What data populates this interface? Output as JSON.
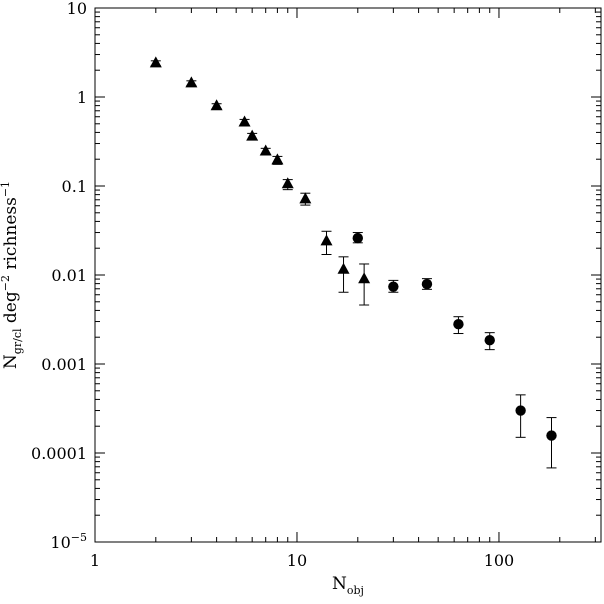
{
  "chart_data": {
    "type": "scatter",
    "xscale": "log",
    "yscale": "log",
    "xlim": [
      1,
      320
    ],
    "ylim": [
      1e-05,
      10
    ],
    "grid": false,
    "legend": "none",
    "xlabel": {
      "main": "N",
      "sub": "obj"
    },
    "ylabel": {
      "n": "N",
      "n_sub": "gr/cl",
      "deg": " deg",
      "deg_exp": "−2",
      "richness": " richness",
      "richness_exp": "−1"
    },
    "x_tick_labels": [
      {
        "value": 1,
        "label": "1"
      },
      {
        "value": 10,
        "label": "10"
      },
      {
        "value": 100,
        "label": "100"
      }
    ],
    "y_tick_labels": [
      {
        "value": 10,
        "label": "10"
      },
      {
        "value": 1,
        "label": "1"
      },
      {
        "value": 0.1,
        "label": "0.1"
      },
      {
        "value": 0.01,
        "label": "0.01"
      },
      {
        "value": 0.001,
        "label": "0.001"
      },
      {
        "value": 0.0001,
        "label": "0.0001"
      },
      {
        "value": 1e-05,
        "label": "10",
        "exp": "−5"
      }
    ],
    "series": [
      {
        "marker": "triangle",
        "points": [
          {
            "x": 2.0,
            "y": 2.4,
            "ylo": 2.25,
            "yhi": 2.55
          },
          {
            "x": 3.0,
            "y": 1.43,
            "ylo": 1.35,
            "yhi": 1.52
          },
          {
            "x": 4.0,
            "y": 0.79,
            "ylo": 0.74,
            "yhi": 0.84
          },
          {
            "x": 5.5,
            "y": 0.52,
            "ylo": 0.48,
            "yhi": 0.56
          },
          {
            "x": 6.0,
            "y": 0.36,
            "ylo": 0.33,
            "yhi": 0.39
          },
          {
            "x": 7.0,
            "y": 0.245,
            "ylo": 0.225,
            "yhi": 0.265
          },
          {
            "x": 8.0,
            "y": 0.195,
            "ylo": 0.175,
            "yhi": 0.215
          },
          {
            "x": 9.0,
            "y": 0.105,
            "ylo": 0.091,
            "yhi": 0.118
          },
          {
            "x": 11.0,
            "y": 0.071,
            "ylo": 0.061,
            "yhi": 0.083
          },
          {
            "x": 14.0,
            "y": 0.024,
            "ylo": 0.017,
            "yhi": 0.031
          },
          {
            "x": 17.0,
            "y": 0.0115,
            "ylo": 0.0064,
            "yhi": 0.016
          },
          {
            "x": 21.5,
            "y": 0.009,
            "ylo": 0.0046,
            "yhi": 0.0133
          }
        ]
      },
      {
        "marker": "circle",
        "points": [
          {
            "x": 20.0,
            "y": 0.026,
            "ylo": 0.023,
            "yhi": 0.03
          },
          {
            "x": 30.0,
            "y": 0.0074,
            "ylo": 0.0064,
            "yhi": 0.0087
          },
          {
            "x": 44.0,
            "y": 0.0079,
            "ylo": 0.0069,
            "yhi": 0.0091
          },
          {
            "x": 63.0,
            "y": 0.0028,
            "ylo": 0.0022,
            "yhi": 0.0034
          },
          {
            "x": 90.0,
            "y": 0.00185,
            "ylo": 0.00145,
            "yhi": 0.00225
          },
          {
            "x": 128.0,
            "y": 0.0003,
            "ylo": 0.00015,
            "yhi": 0.00045
          },
          {
            "x": 182.0,
            "y": 0.000157,
            "ylo": 6.8e-05,
            "yhi": 0.00025
          }
        ]
      }
    ]
  }
}
